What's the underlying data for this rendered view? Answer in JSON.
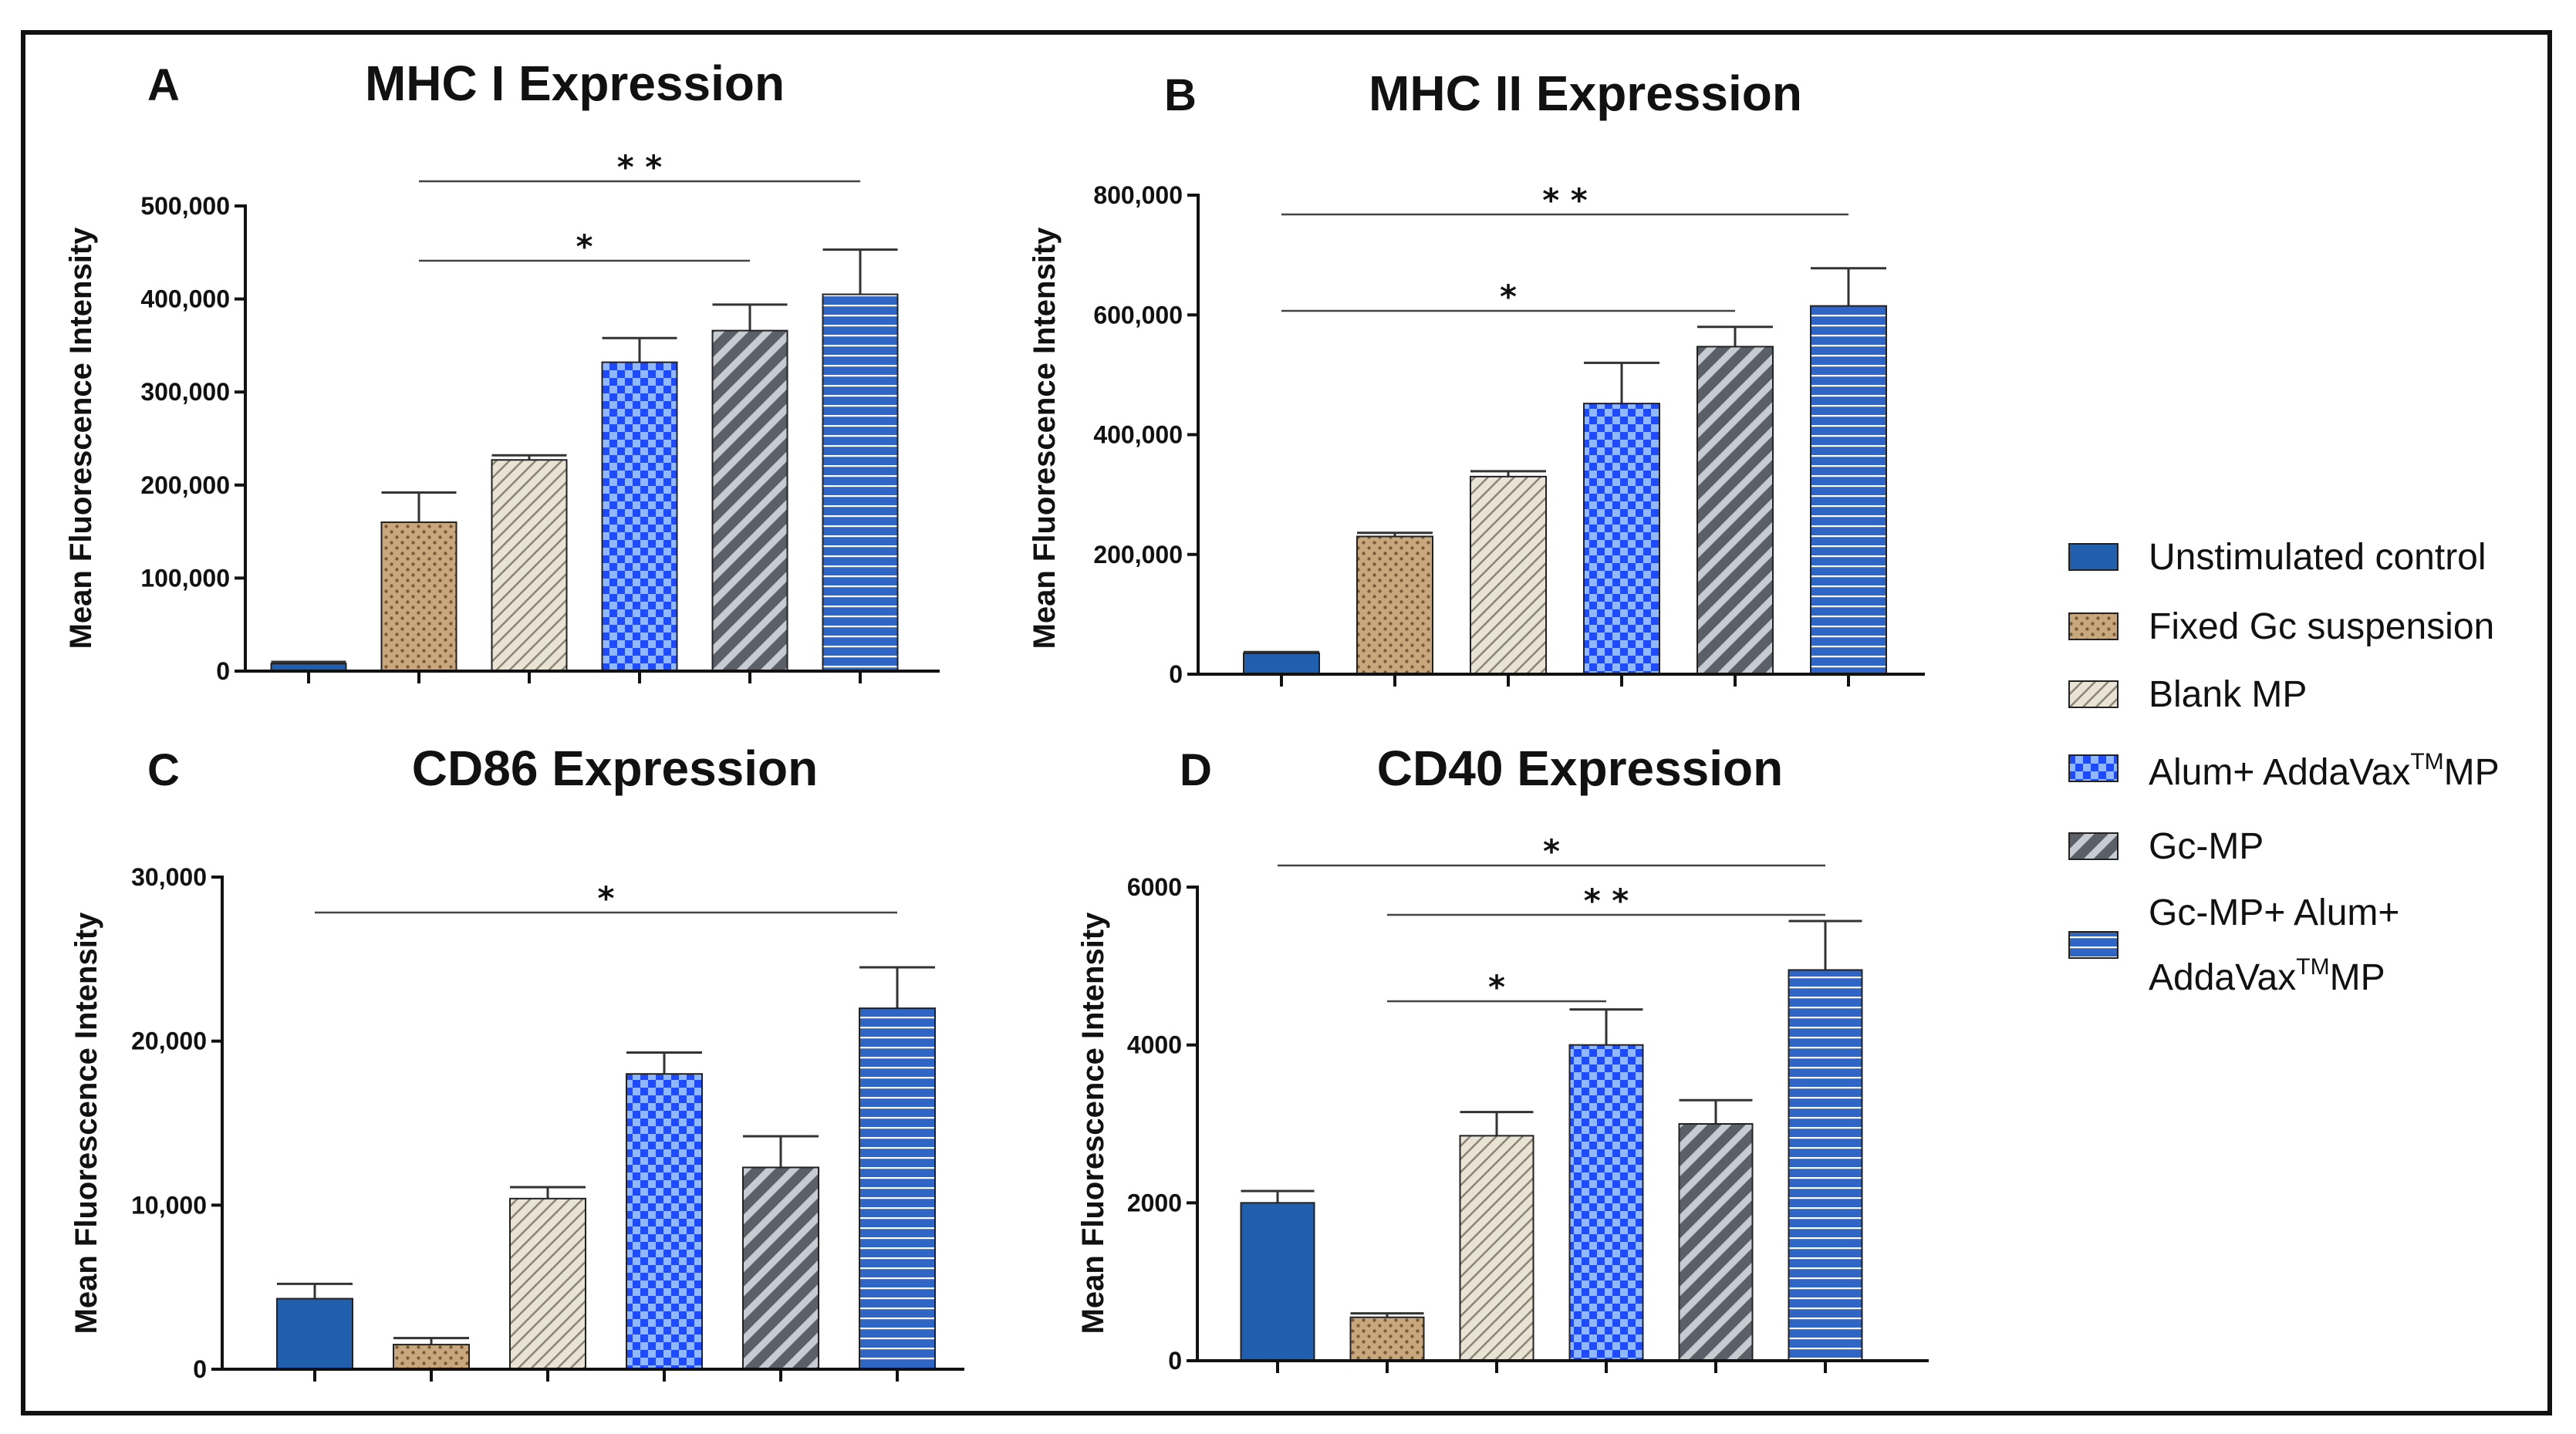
{
  "colors": {
    "unstimulated": "#1f5fad",
    "fixed_fill": "#c9a77c",
    "fixed_dot": "#7d5a37",
    "blank_fill": "#e9e3d6",
    "blank_line": "#8c8474",
    "alum_a": "#1e4bff",
    "alum_b": "#8fb8ff",
    "gcmp_a": "#5b6068",
    "gcmp_b": "#c7ccd3",
    "combo_fill": "#2f66c6",
    "combo_line": "#ffffff"
  },
  "legend": {
    "items": [
      {
        "label": "Unstimulated control",
        "pattern": "solid"
      },
      {
        "label": "Fixed Gc suspension",
        "pattern": "dots"
      },
      {
        "label": "Blank MP",
        "pattern": "diag-light"
      },
      {
        "label": "Alum+ AddaVax",
        "sup": "TM",
        "suffix": "MP",
        "pattern": "checker"
      },
      {
        "label": "Gc-MP",
        "pattern": "diag-dark"
      },
      {
        "label": "Gc-MP+ Alum+",
        "line2": "AddaVax",
        "sup": "TM",
        "suffix": "MP",
        "pattern": "hstripe"
      }
    ]
  },
  "chart_data": [
    {
      "type": "bar",
      "panel": "A",
      "title": "MHC I Expression",
      "ylabel": "Mean Fluorescence Intensity",
      "xlabel": "",
      "ylim": [
        0,
        500000
      ],
      "yticks": [
        0,
        100000,
        200000,
        300000,
        400000,
        500000
      ],
      "ytick_labels": [
        "0",
        "100,000",
        "200,000",
        "300,000",
        "400,000",
        "500,000"
      ],
      "categories": [
        "Unstimulated control",
        "Fixed Gc suspension",
        "Blank MP",
        "Alum+ AddaVaxTMMP",
        "Gc-MP",
        "Gc-MP+ Alum+ AddaVaxTMMP"
      ],
      "values": [
        8000,
        160000,
        227000,
        332000,
        366000,
        405000
      ],
      "errors": [
        2000,
        32000,
        5000,
        26000,
        28000,
        48000
      ],
      "significance": [
        {
          "from": 1,
          "to": 5,
          "label": "* *"
        },
        {
          "from": 1,
          "to": 4,
          "label": "*"
        }
      ]
    },
    {
      "type": "bar",
      "panel": "B",
      "title": "MHC II Expression",
      "ylabel": "Mean Fluorescence Intensity",
      "xlabel": "",
      "ylim": [
        0,
        800000
      ],
      "yticks": [
        0,
        200000,
        400000,
        600000,
        800000
      ],
      "ytick_labels": [
        "0",
        "200,000",
        "400,000",
        "600,000",
        "800,000"
      ],
      "categories": [
        "Unstimulated control",
        "Fixed Gc suspension",
        "Blank MP",
        "Alum+ AddaVaxTMMP",
        "Gc-MP",
        "Gc-MP+ Alum+ AddaVaxTMMP"
      ],
      "values": [
        35000,
        230000,
        330000,
        452000,
        547000,
        615000
      ],
      "errors": [
        2000,
        6000,
        9000,
        68000,
        33000,
        63000
      ],
      "significance": [
        {
          "from": 0,
          "to": 5,
          "label": "* *"
        },
        {
          "from": 0,
          "to": 4,
          "label": "*"
        }
      ]
    },
    {
      "type": "bar",
      "panel": "C",
      "title": "CD86 Expression",
      "ylabel": "Mean Fluorescence Intensity",
      "xlabel": "",
      "ylim": [
        0,
        30000
      ],
      "yticks": [
        0,
        10000,
        20000,
        30000
      ],
      "ytick_labels": [
        "0",
        "10,000",
        "20,000",
        "30,000"
      ],
      "categories": [
        "Unstimulated control",
        "Fixed Gc suspension",
        "Blank MP",
        "Alum+ AddaVaxTMMP",
        "Gc-MP",
        "Gc-MP+ Alum+ AddaVaxTMMP"
      ],
      "values": [
        4300,
        1500,
        10400,
        18000,
        12300,
        22000
      ],
      "errors": [
        900,
        400,
        700,
        1300,
        1900,
        2500
      ],
      "significance": [
        {
          "from": 0,
          "to": 5,
          "label": "*"
        }
      ]
    },
    {
      "type": "bar",
      "panel": "D",
      "title": "CD40 Expression",
      "ylabel": "Mean Fluorescence Intensity",
      "xlabel": "",
      "ylim": [
        0,
        6000
      ],
      "yticks": [
        0,
        2000,
        4000,
        6000
      ],
      "ytick_labels": [
        "0",
        "2000",
        "4000",
        "6000"
      ],
      "categories": [
        "Unstimulated control",
        "Fixed Gc suspension",
        "Blank MP",
        "Alum+ AddaVaxTMMP",
        "Gc-MP",
        "Gc-MP+ Alum+ AddaVaxTMMP"
      ],
      "values": [
        2000,
        550,
        2850,
        4000,
        3000,
        4950
      ],
      "errors": [
        150,
        50,
        300,
        450,
        300,
        620
      ],
      "significance": [
        {
          "from": 0,
          "to": 5,
          "label": "*"
        },
        {
          "from": 1,
          "to": 5,
          "label": "* *"
        },
        {
          "from": 1,
          "to": 3,
          "label": "*"
        }
      ]
    }
  ]
}
